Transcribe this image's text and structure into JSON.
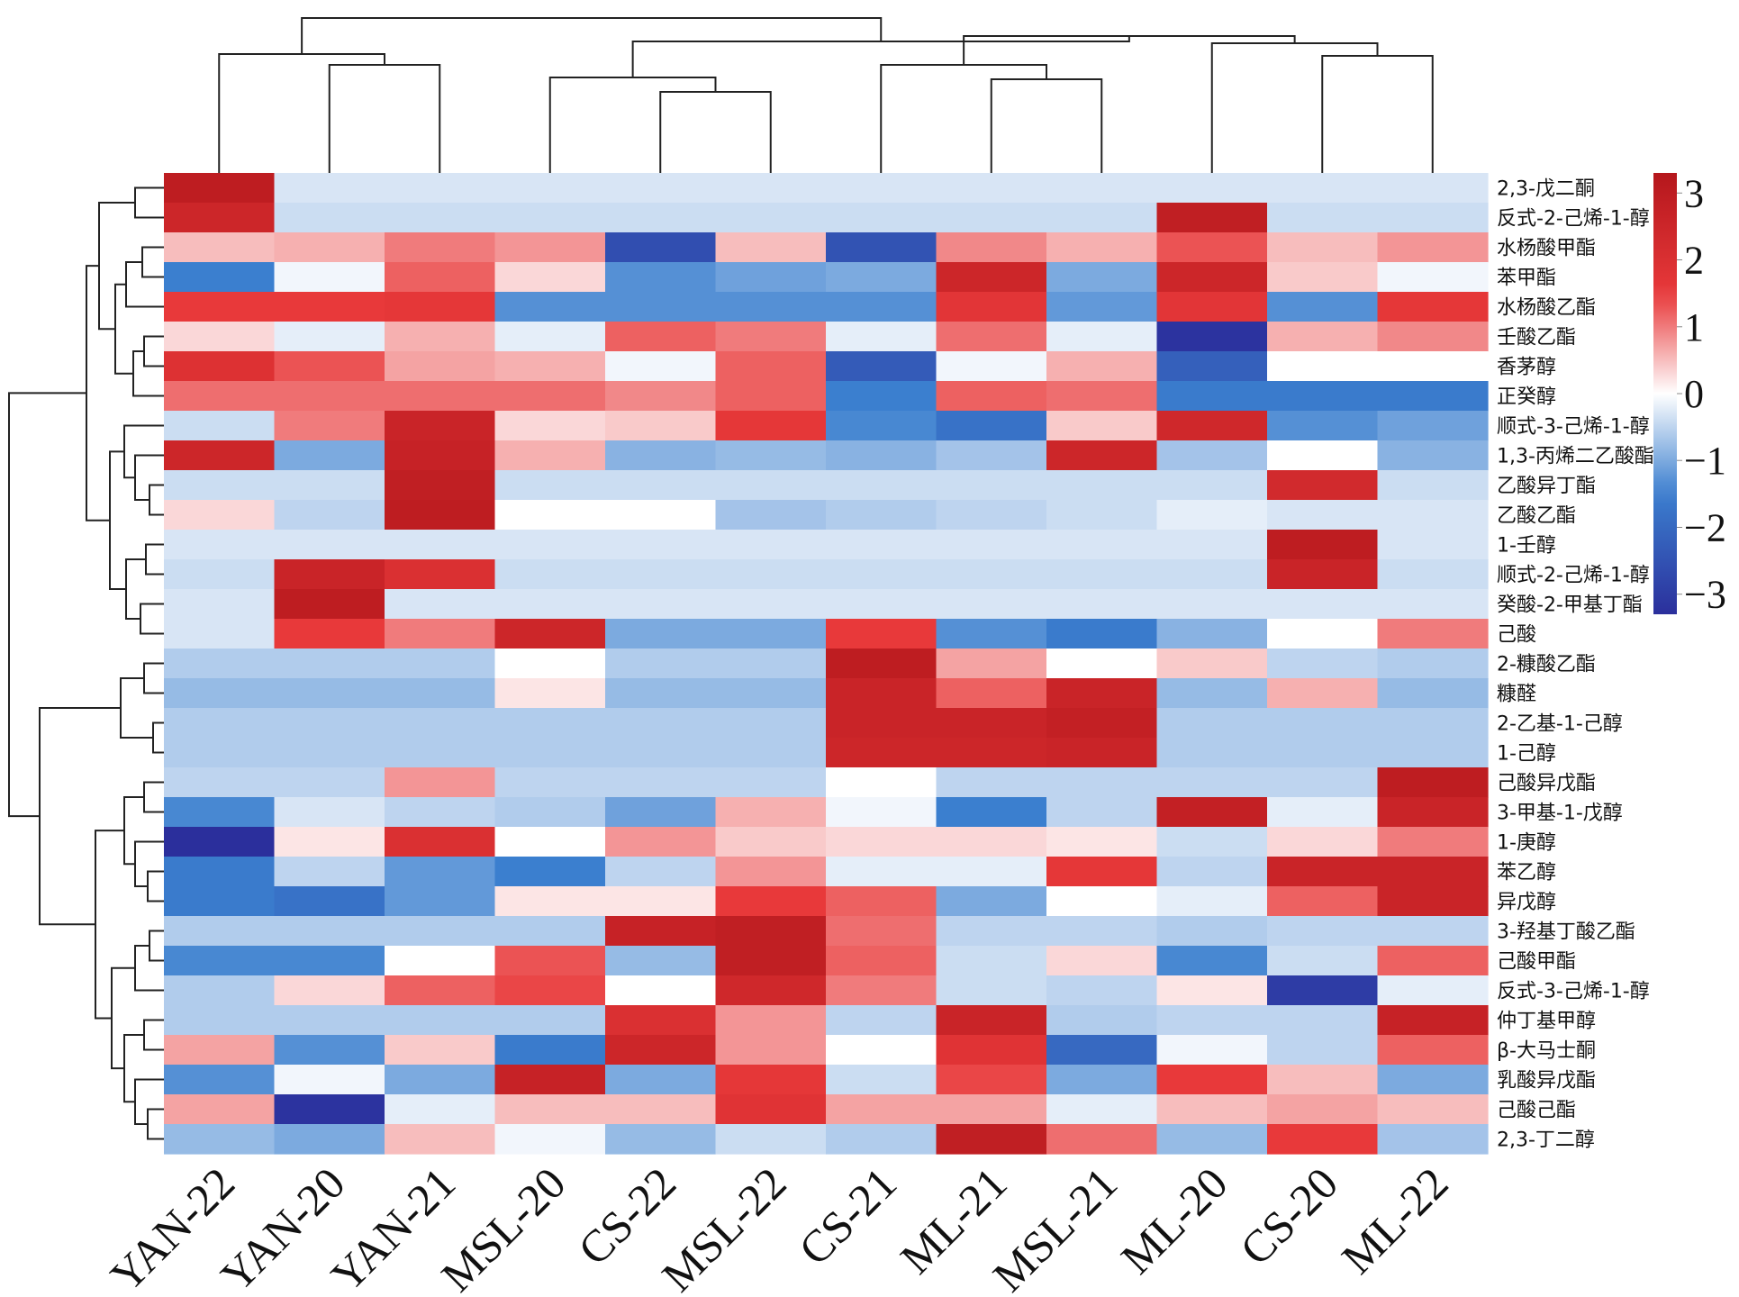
{
  "chart_data": {
    "type": "heatmap",
    "columns": [
      "YAN-22",
      "YAN-20",
      "YAN-21",
      "MSL-20",
      "CS-22",
      "MSL-22",
      "CS-21",
      "ML-21",
      "MSL-21",
      "ML-20",
      "CS-20",
      "ML-22"
    ],
    "rows": [
      "2,3-戊二酮",
      "反式-2-己烯-1-醇",
      "水杨酸甲酯",
      "苯甲酯",
      "水杨酸乙酯",
      "壬酸乙酯",
      "香茅醇",
      "正癸醇",
      "顺式-3-己烯-1-醇",
      "1,3-丙烯二乙酸酯",
      "乙酸异丁酯",
      "乙酸乙酯",
      "1-壬醇",
      "顺式-2-己烯-1-醇",
      "癸酸-2-甲基丁酯",
      "己酸",
      "2-糠酸乙酯",
      "糠醛",
      "2-乙基-1-己醇",
      "1-己醇",
      "己酸异戊酯",
      "3-甲基-1-戊醇",
      "1-庚醇",
      "苯乙醇",
      "异戊醇",
      "3-羟基丁酸乙酯",
      "己酸甲酯",
      "反式-3-己烯-1-醇",
      "仲丁基甲醇",
      "β-大马士酮",
      "乳酸异戊酯",
      "己酸己酯",
      "2,3-丁二醇"
    ],
    "values": [
      [
        3.0,
        -0.3,
        -0.3,
        -0.3,
        -0.3,
        -0.3,
        -0.3,
        -0.3,
        -0.3,
        -0.3,
        -0.3,
        -0.3
      ],
      [
        2.5,
        -0.4,
        -0.4,
        -0.4,
        -0.4,
        -0.4,
        -0.4,
        -0.4,
        -0.4,
        2.9,
        -0.4,
        -0.4
      ],
      [
        0.5,
        0.6,
        1.0,
        0.8,
        -2.6,
        0.5,
        -2.5,
        0.9,
        0.6,
        1.3,
        0.5,
        0.8
      ],
      [
        -1.5,
        -0.1,
        1.2,
        0.3,
        -1.3,
        -1.1,
        -1.0,
        2.5,
        -1.0,
        2.5,
        0.4,
        -0.1
      ],
      [
        1.5,
        1.5,
        1.6,
        -1.3,
        -1.3,
        -1.3,
        -1.3,
        1.7,
        -1.2,
        1.7,
        -1.3,
        1.6
      ],
      [
        0.3,
        -0.2,
        0.6,
        -0.2,
        1.2,
        1.0,
        -0.2,
        1.1,
        -0.2,
        -3.2,
        0.6,
        0.9
      ],
      [
        1.9,
        1.3,
        0.7,
        0.6,
        -0.1,
        1.2,
        -2.3,
        -0.1,
        0.6,
        -2.2,
        0.0,
        0.0
      ],
      [
        1.1,
        1.1,
        1.1,
        1.1,
        0.9,
        1.2,
        -1.5,
        1.2,
        1.1,
        -1.6,
        -1.6,
        -1.6
      ],
      [
        -0.4,
        1.0,
        2.6,
        0.3,
        0.4,
        1.6,
        -1.4,
        -1.8,
        0.4,
        2.4,
        -1.3,
        -1.1
      ],
      [
        2.5,
        -1.0,
        2.7,
        0.6,
        -0.9,
        -0.8,
        -0.9,
        -0.7,
        2.5,
        -0.7,
        0.0,
        -0.9
      ],
      [
        -0.4,
        -0.4,
        2.9,
        -0.4,
        -0.4,
        -0.4,
        -0.4,
        -0.4,
        -0.4,
        -0.4,
        2.3,
        -0.4
      ],
      [
        0.3,
        -0.5,
        3.0,
        0.0,
        0.0,
        -0.7,
        -0.6,
        -0.5,
        -0.4,
        -0.2,
        -0.3,
        -0.3
      ],
      [
        -0.3,
        -0.3,
        -0.3,
        -0.3,
        -0.3,
        -0.3,
        -0.3,
        -0.3,
        -0.3,
        -0.3,
        3.0,
        -0.3
      ],
      [
        -0.4,
        2.6,
        2.0,
        -0.4,
        -0.4,
        -0.4,
        -0.4,
        -0.4,
        -0.4,
        -0.4,
        2.6,
        -0.4
      ],
      [
        -0.3,
        3.0,
        -0.3,
        -0.3,
        -0.3,
        -0.3,
        -0.3,
        -0.3,
        -0.3,
        -0.3,
        -0.3,
        -0.3
      ],
      [
        -0.3,
        1.5,
        1.0,
        2.5,
        -1.0,
        -1.0,
        1.5,
        -1.3,
        -1.6,
        -0.9,
        0.0,
        1.0
      ],
      [
        -0.6,
        -0.6,
        -0.6,
        0.0,
        -0.6,
        -0.6,
        3.0,
        0.7,
        0.0,
        0.4,
        -0.5,
        -0.6
      ],
      [
        -0.8,
        -0.8,
        -0.8,
        0.2,
        -0.8,
        -0.8,
        2.6,
        1.2,
        2.6,
        -0.8,
        0.6,
        -0.8
      ],
      [
        -0.6,
        -0.6,
        -0.6,
        -0.6,
        -0.6,
        -0.6,
        2.6,
        2.6,
        2.8,
        -0.6,
        -0.6,
        -0.6
      ],
      [
        -0.6,
        -0.6,
        -0.6,
        -0.6,
        -0.6,
        -0.6,
        2.5,
        2.5,
        2.6,
        -0.6,
        -0.6,
        -0.6
      ],
      [
        -0.5,
        -0.5,
        0.8,
        -0.5,
        -0.5,
        -0.5,
        0.0,
        -0.5,
        -0.5,
        -0.5,
        -0.5,
        3.0
      ],
      [
        -1.4,
        -0.3,
        -0.5,
        -0.6,
        -1.1,
        0.6,
        -0.1,
        -1.5,
        -0.5,
        2.8,
        -0.2,
        2.6
      ],
      [
        -3.3,
        0.2,
        2.0,
        0.0,
        0.8,
        0.4,
        0.3,
        0.3,
        0.2,
        -0.4,
        0.3,
        1.0
      ],
      [
        -1.6,
        -0.5,
        -1.2,
        -1.5,
        -0.5,
        0.8,
        -0.2,
        -0.2,
        1.6,
        -0.5,
        2.6,
        2.6
      ],
      [
        -1.6,
        -1.8,
        -1.2,
        0.2,
        0.2,
        1.5,
        1.2,
        -1.0,
        0.0,
        -0.2,
        1.2,
        2.6
      ],
      [
        -0.6,
        -0.6,
        -0.6,
        -0.6,
        2.7,
        2.9,
        1.1,
        -0.5,
        -0.5,
        -0.6,
        -0.5,
        -0.5
      ],
      [
        -1.4,
        -1.4,
        0.0,
        1.3,
        -0.8,
        2.9,
        1.2,
        -0.4,
        0.3,
        -1.4,
        -0.4,
        1.2
      ],
      [
        -0.6,
        0.3,
        1.2,
        1.4,
        0.0,
        2.4,
        1.0,
        -0.4,
        -0.5,
        0.2,
        -3.0,
        -0.2
      ],
      [
        -0.6,
        -0.6,
        -0.6,
        -0.6,
        2.0,
        0.8,
        -0.5,
        2.6,
        -0.6,
        -0.5,
        -0.5,
        2.7
      ],
      [
        0.7,
        -1.3,
        0.4,
        -1.6,
        2.5,
        0.8,
        0.0,
        1.8,
        -2.0,
        -0.1,
        -0.5,
        1.2
      ],
      [
        -1.3,
        -0.1,
        -1.0,
        2.7,
        -1.0,
        1.6,
        -0.4,
        1.4,
        -1.0,
        1.5,
        0.5,
        -1.0
      ],
      [
        0.7,
        -3.2,
        -0.2,
        0.5,
        0.5,
        1.8,
        0.7,
        0.7,
        -0.2,
        0.5,
        0.7,
        0.5
      ],
      [
        -0.8,
        -1.0,
        0.5,
        -0.1,
        -0.8,
        -0.4,
        -0.6,
        2.9,
        1.1,
        -0.8,
        1.5,
        -0.7
      ]
    ],
    "colorbar": {
      "ticks": [
        "3",
        "2",
        "1",
        "0",
        "−1",
        "−2",
        "−3"
      ],
      "tick_values": [
        3,
        2,
        1,
        0,
        -1,
        -2,
        -3
      ],
      "range": [
        -3.3,
        3.3
      ],
      "colors": {
        "low": "#2b2f9c",
        "mid_low": "#3b7fcf",
        "mid": "#ffffff",
        "mid_high": "#e8393a",
        "high": "#b5171c"
      }
    }
  }
}
